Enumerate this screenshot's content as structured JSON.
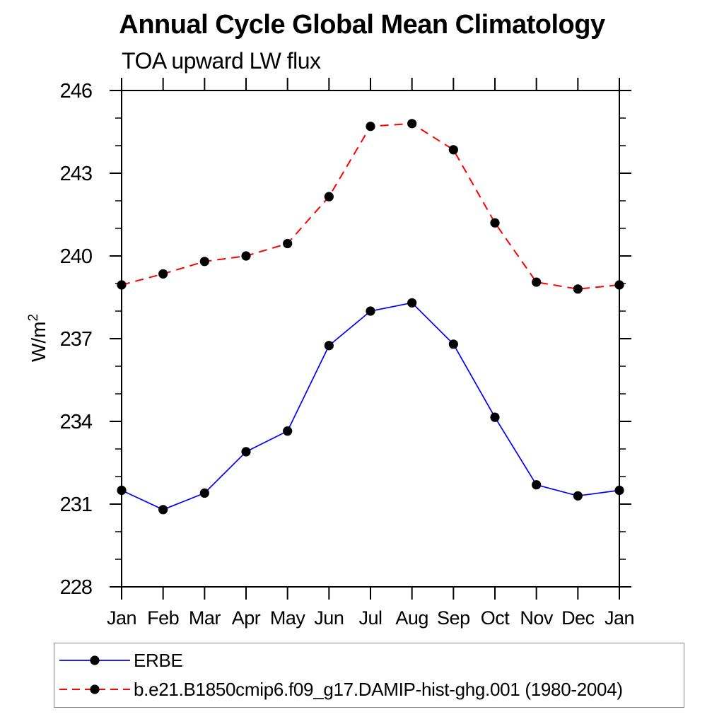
{
  "title": "Annual Cycle Global Mean Climatology",
  "subtitle": "TOA upward LW flux",
  "chart_data": {
    "type": "line",
    "categories": [
      "Jan",
      "Feb",
      "Mar",
      "Apr",
      "May",
      "Jun",
      "Jul",
      "Aug",
      "Sep",
      "Oct",
      "Nov",
      "Dec",
      "Jan"
    ],
    "series": [
      {
        "name": "ERBE",
        "line_color": "#0000ff",
        "line_style": "solid",
        "marker": "filled-circle",
        "marker_color": "#000000",
        "values": [
          231.5,
          230.8,
          231.4,
          232.9,
          233.65,
          236.75,
          238.0,
          238.3,
          236.8,
          234.15,
          231.7,
          231.3,
          231.5
        ]
      },
      {
        "name": "b.e21.B1850cmip6.f09_g17.DAMIP-hist-ghg.001 (1980-2004)",
        "line_color": "#ff0000",
        "line_style": "dashed",
        "marker": "filled-circle",
        "marker_color": "#000000",
        "values": [
          238.95,
          239.35,
          239.8,
          240.0,
          240.45,
          242.15,
          244.7,
          244.8,
          243.85,
          241.2,
          239.05,
          238.8,
          238.95
        ]
      }
    ],
    "xlabel": "",
    "ylabel": "W/m",
    "ylabel_superscript": "2",
    "ylim": [
      228,
      246
    ],
    "ytick_major": [
      228,
      231,
      234,
      237,
      240,
      243,
      246
    ],
    "ytick_minor_step": 1,
    "xtick_labels": [
      "Jan",
      "Feb",
      "Mar",
      "Apr",
      "May",
      "Jun",
      "Jul",
      "Aug",
      "Sep",
      "Oct",
      "Nov",
      "Dec",
      "Jan"
    ],
    "grid": false,
    "legend_position": "bottom",
    "axis_color": "#000000",
    "legend_border_color": "#848484"
  }
}
